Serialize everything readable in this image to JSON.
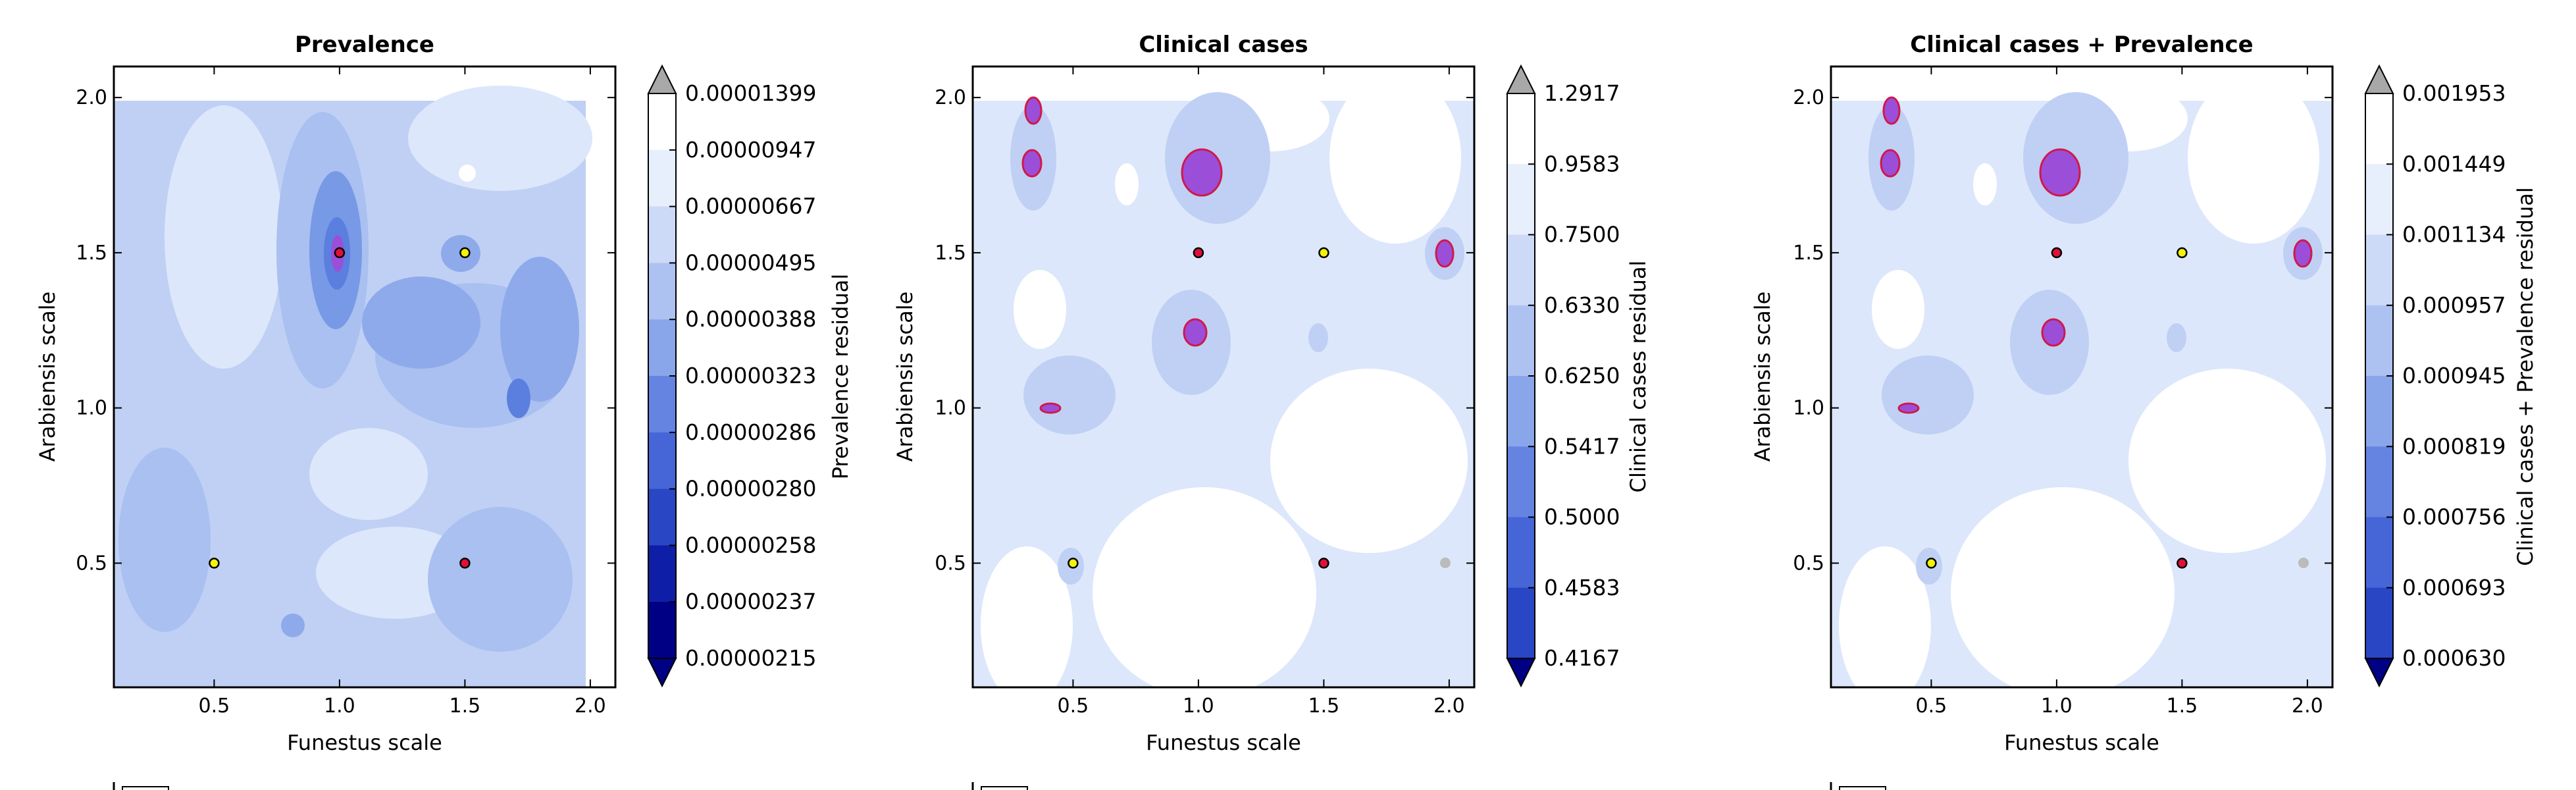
{
  "chart_data": [
    {
      "type": "contour",
      "title": "Prevalence",
      "xlabel": "Funestus scale",
      "ylabel": "Arabiensis scale",
      "colorbar_label": "Prevalence residual",
      "x_ticks": [
        "0.5",
        "1.0",
        "1.5",
        "2.0"
      ],
      "y_ticks": [
        "0.5",
        "1.0",
        "1.5",
        "2.0"
      ],
      "xlim": [
        0.1,
        2.1
      ],
      "ylim": [
        0.1,
        2.1
      ],
      "levels": [
        "0.00001399",
        "0.00000947",
        "0.00000667",
        "0.00000495",
        "0.00000388",
        "0.00000323",
        "0.00000286",
        "0.00000280",
        "0.00000258",
        "0.00000237",
        "0.00000215"
      ],
      "markers": [
        {
          "x": 1.0,
          "y": 1.5,
          "color": "#e0103a"
        },
        {
          "x": 1.5,
          "y": 1.5,
          "color": "#f2f20a"
        },
        {
          "x": 0.5,
          "y": 0.5,
          "color": "#f2f20a"
        },
        {
          "x": 1.5,
          "y": 0.5,
          "color": "#e0103a"
        }
      ]
    },
    {
      "type": "contour",
      "title": "Clinical cases",
      "xlabel": "Funestus scale",
      "ylabel": "Arabiensis scale",
      "colorbar_label": "Clinical cases residual",
      "x_ticks": [
        "0.5",
        "1.0",
        "1.5",
        "2.0"
      ],
      "y_ticks": [
        "0.5",
        "1.0",
        "1.5",
        "2.0"
      ],
      "xlim": [
        0.1,
        2.1
      ],
      "ylim": [
        0.1,
        2.1
      ],
      "levels": [
        "1.2917",
        "0.9583",
        "0.7500",
        "0.6330",
        "0.6250",
        "0.5417",
        "0.5000",
        "0.4583",
        "0.4167"
      ],
      "markers": [
        {
          "x": 1.0,
          "y": 1.5,
          "color": "#e0103a"
        },
        {
          "x": 1.5,
          "y": 1.5,
          "color": "#f2f20a"
        },
        {
          "x": 0.5,
          "y": 0.5,
          "color": "#f2f20a"
        },
        {
          "x": 1.5,
          "y": 0.5,
          "color": "#e0103a"
        }
      ]
    },
    {
      "type": "contour",
      "title": "Clinical cases + Prevalence",
      "xlabel": "Funestus scale",
      "ylabel": "Arabiensis scale",
      "colorbar_label": "Clinical cases + Prevalence residual",
      "x_ticks": [
        "0.5",
        "1.0",
        "1.5",
        "2.0"
      ],
      "y_ticks": [
        "0.5",
        "1.0",
        "1.5",
        "2.0"
      ],
      "xlim": [
        0.1,
        2.1
      ],
      "ylim": [
        0.1,
        2.1
      ],
      "levels": [
        "0.001953",
        "0.001449",
        "0.001134",
        "0.000957",
        "0.000945",
        "0.000819",
        "0.000756",
        "0.000693",
        "0.000630"
      ],
      "markers": [
        {
          "x": 1.0,
          "y": 1.5,
          "color": "#e0103a"
        },
        {
          "x": 1.5,
          "y": 1.5,
          "color": "#f2f20a"
        },
        {
          "x": 0.5,
          "y": 0.5,
          "color": "#f2f20a"
        },
        {
          "x": 1.5,
          "y": 0.5,
          "color": "#e0103a"
        }
      ]
    }
  ]
}
